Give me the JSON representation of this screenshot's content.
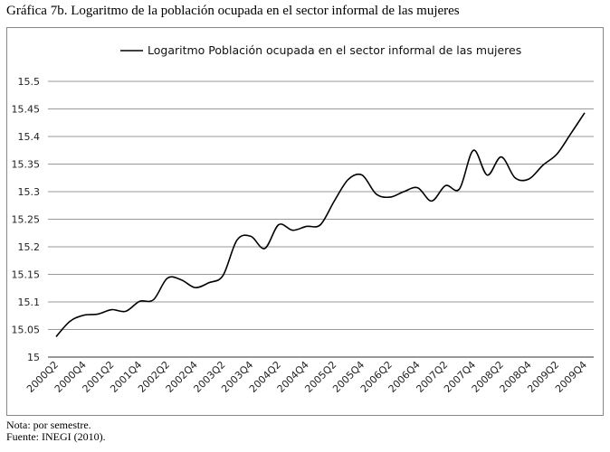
{
  "title": "Gráfica 7b. Logaritmo de la población ocupada en el sector informal de las mujeres",
  "notes": {
    "nota": "Nota: por semestre.",
    "fuente": "Fuente: INEGI (2010)."
  },
  "chart_data": {
    "type": "line",
    "title": "Gráfica 7b. Logaritmo de la población ocupada en el sector informal de las mujeres",
    "xlabel": "",
    "ylabel": "",
    "ylim": [
      15,
      15.5
    ],
    "yticks": [
      "15",
      "15.05",
      "15.1",
      "15.15",
      "15.2",
      "15.25",
      "15.3",
      "15.35",
      "15.4",
      "15.45",
      "15.5"
    ],
    "grid": true,
    "legend_position": "top",
    "x": [
      "2000Q2",
      "2000Q3",
      "2000Q4",
      "2001Q1",
      "2001Q2",
      "2001Q3",
      "2001Q4",
      "2002Q1",
      "2002Q2",
      "2002Q3",
      "2002Q4",
      "2003Q1",
      "2003Q2",
      "2003Q3",
      "2003Q4",
      "2004Q1",
      "2004Q2",
      "2004Q3",
      "2004Q4",
      "2005Q1",
      "2005Q2",
      "2005Q3",
      "2005Q4",
      "2006Q1",
      "2006Q2",
      "2006Q3",
      "2006Q4",
      "2007Q1",
      "2007Q2",
      "2007Q3",
      "2007Q4",
      "2008Q1",
      "2008Q2",
      "2008Q3",
      "2008Q4",
      "2009Q1",
      "2009Q2",
      "2009Q3",
      "2009Q4"
    ],
    "xtick_labels": [
      "2000Q2",
      "2000Q4",
      "2001Q2",
      "2001Q4",
      "2002Q2",
      "2002Q4",
      "2003Q2",
      "2003Q4",
      "2004Q2",
      "2004Q4",
      "2005Q2",
      "2005Q4",
      "2006Q2",
      "2006Q4",
      "2007Q2",
      "2007Q4",
      "2008Q2",
      "2008Q4",
      "2009Q2",
      "2009Q4"
    ],
    "series": [
      {
        "name": "Logaritmo Población ocupada en el sector informal de las mujeres",
        "color": "#000000",
        "values": [
          15.037,
          15.065,
          15.076,
          15.078,
          15.086,
          15.083,
          15.101,
          15.104,
          15.143,
          15.14,
          15.126,
          15.135,
          15.148,
          15.212,
          15.219,
          15.197,
          15.24,
          15.23,
          15.237,
          15.24,
          15.283,
          15.322,
          15.33,
          15.296,
          15.29,
          15.3,
          15.307,
          15.283,
          15.311,
          15.305,
          15.375,
          15.33,
          15.363,
          15.325,
          15.323,
          15.348,
          15.368,
          15.405,
          15.443
        ]
      }
    ]
  }
}
